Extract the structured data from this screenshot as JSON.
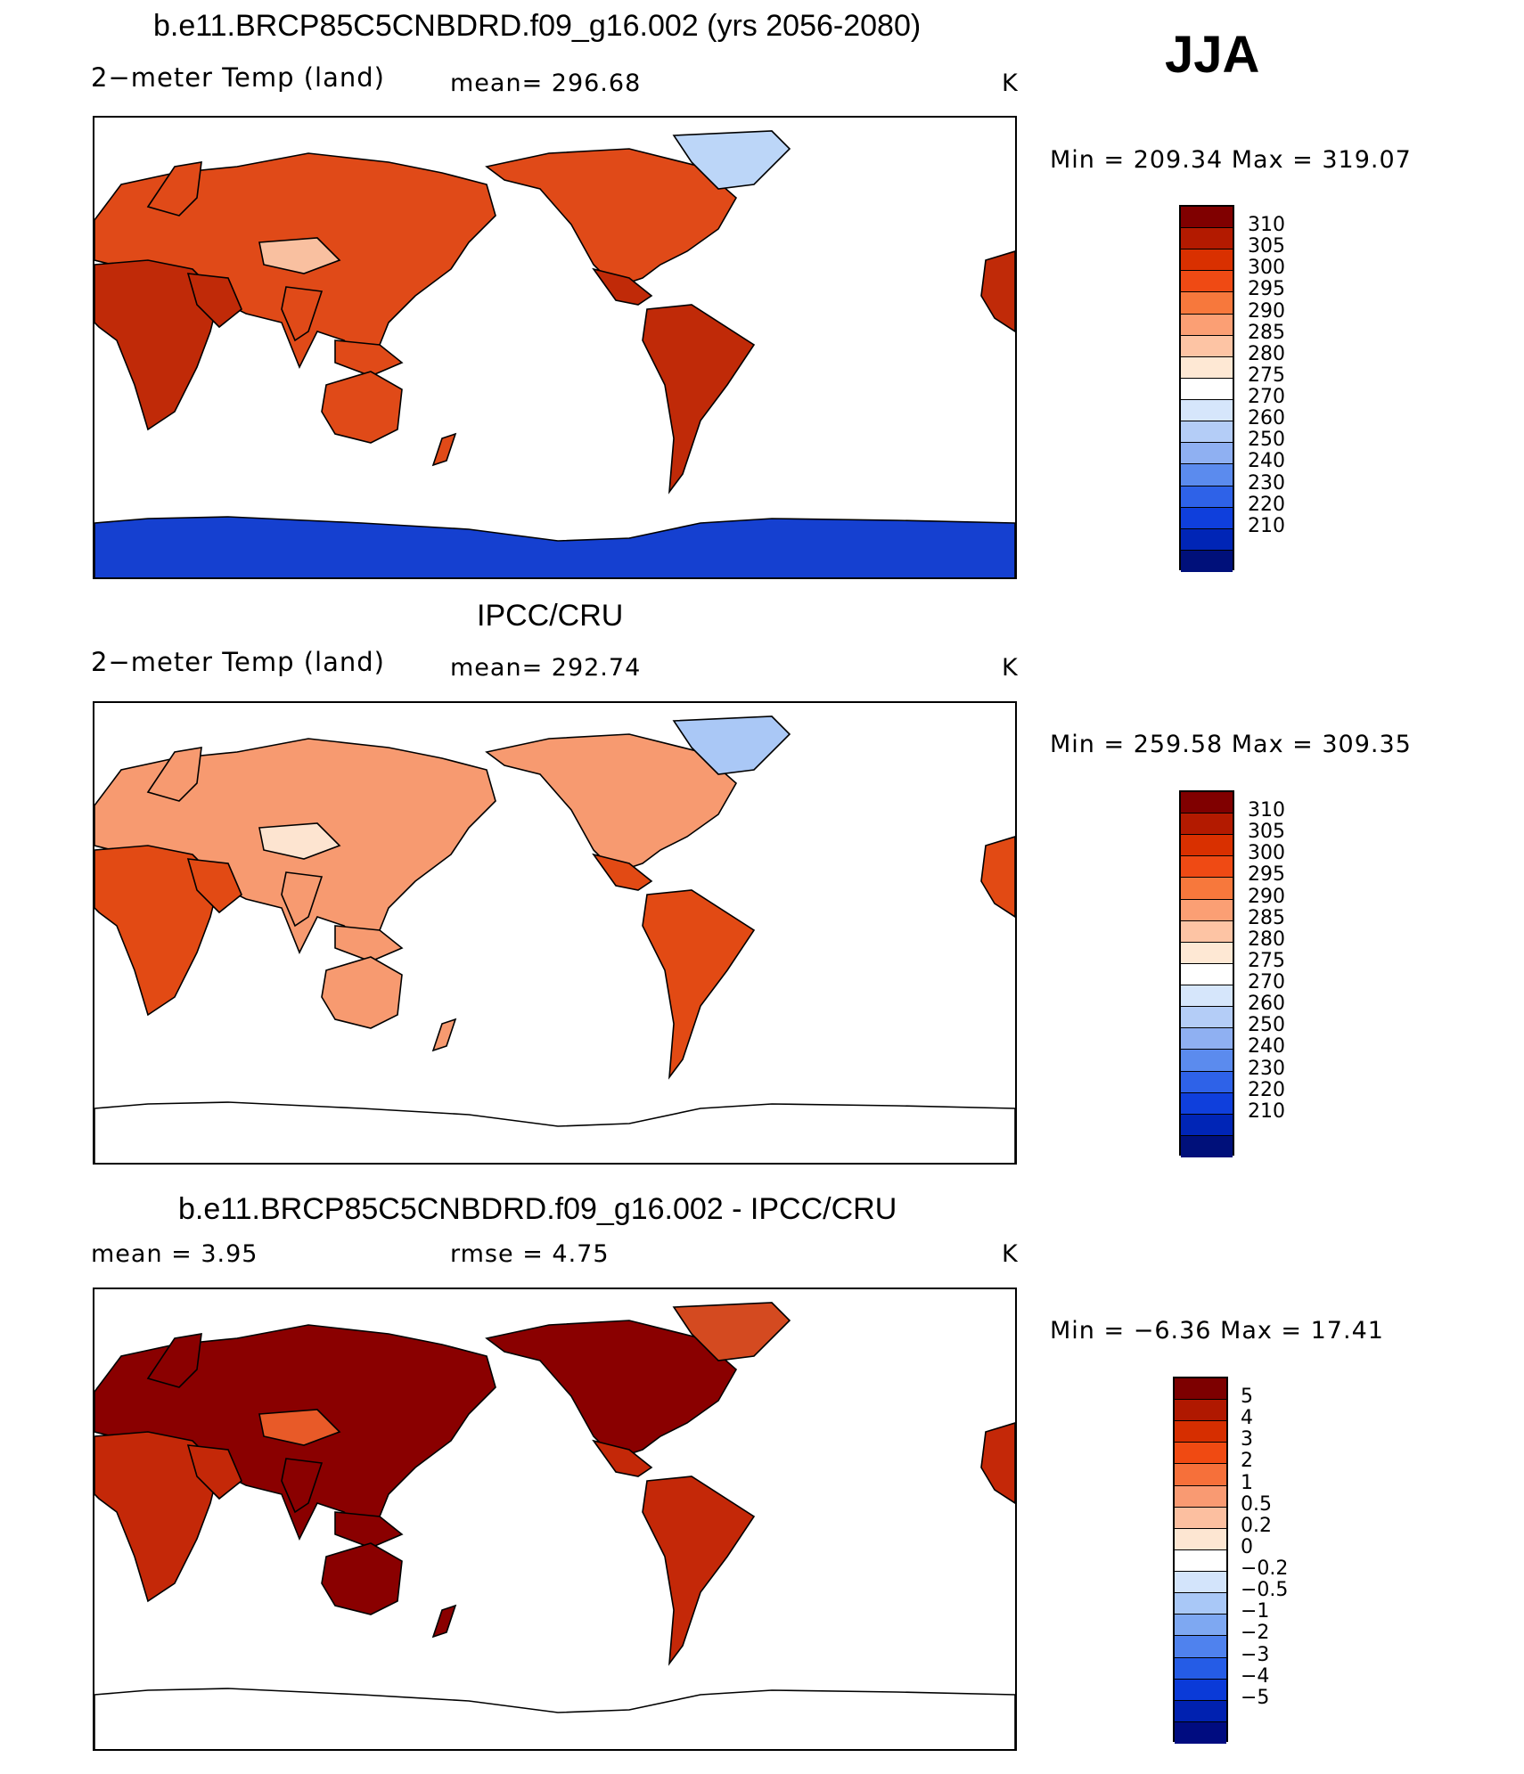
{
  "season": "JJA",
  "panels": [
    {
      "title": "b.e11.BRCP85C5CNBDRD.f09_g16.002 (yrs 2056-2080)",
      "left_label": "2−meter Temp (land)",
      "center_label": "mean=  296.68",
      "unit": "K",
      "minmax": "Min  =  209.34  Max  =  319.07"
    },
    {
      "title": "IPCC/CRU",
      "left_label": "2−meter Temp (land)",
      "center_label": "mean=  292.74",
      "unit": "K",
      "minmax": "Min  =  259.58  Max  =  309.35"
    },
    {
      "title": "b.e11.BRCP85C5CNBDRD.f09_g16.002 - IPCC/CRU",
      "left_label": "mean  =      3.95",
      "center_label": "rmse  =      4.75",
      "unit": "K",
      "minmax": "Min  =     −6.36  Max  =     17.41"
    }
  ],
  "chart_data": [
    {
      "type": "heatmap",
      "title": "b.e11.BRCP85C5CNBDRD.f09_g16.002 (yrs 2056-2080)",
      "variable": "2−meter Temp (land)",
      "units": "K",
      "mean": 296.68,
      "min": 209.34,
      "max": 319.07,
      "colorbar_levels": [
        "310",
        "305",
        "300",
        "295",
        "290",
        "285",
        "280",
        "275",
        "270",
        "260",
        "250",
        "240",
        "230",
        "220",
        "210"
      ],
      "colorbar_colors": [
        "#800000",
        "#b31a00",
        "#d93000",
        "#ef4a14",
        "#f7783c",
        "#fb9f74",
        "#fdc4a4",
        "#fee8d4",
        "#ffffff",
        "#d6e6fb",
        "#b4cdf7",
        "#8fb0f2",
        "#5b8bee",
        "#2e62e8",
        "#0f3fdc",
        "#0025b6",
        "#00107a"
      ],
      "regions": {
        "northern_land": "#e04a18",
        "tropics_dry": "#c02a08",
        "tibet": "#f9c0a0",
        "greenland": "#bcd6f8",
        "antarctica": "#1540d0"
      }
    },
    {
      "type": "heatmap",
      "title": "IPCC/CRU",
      "variable": "2−meter Temp (land)",
      "units": "K",
      "mean": 292.74,
      "min": 259.58,
      "max": 309.35,
      "colorbar_levels": [
        "310",
        "305",
        "300",
        "295",
        "290",
        "285",
        "280",
        "275",
        "270",
        "260",
        "250",
        "240",
        "230",
        "220",
        "210"
      ],
      "colorbar_colors": [
        "#800000",
        "#b31a00",
        "#d93000",
        "#ef4a14",
        "#f7783c",
        "#fb9f74",
        "#fdc4a4",
        "#fee8d4",
        "#ffffff",
        "#d6e6fb",
        "#b4cdf7",
        "#8fb0f2",
        "#5b8bee",
        "#2e62e8",
        "#0f3fdc",
        "#0025b6",
        "#00107a"
      ],
      "regions": {
        "northern_land": "#f79a70",
        "tropics_dry": "#e24a14",
        "tibet": "#fde4d0",
        "greenland": "#aac8f6",
        "antarctica": "#ffffff"
      }
    },
    {
      "type": "heatmap",
      "title": "b.e11.BRCP85C5CNBDRD.f09_g16.002 - IPCC/CRU",
      "units": "K",
      "mean": 3.95,
      "rmse": 4.75,
      "min": -6.36,
      "max": 17.41,
      "colorbar_levels": [
        "5",
        "4",
        "3",
        "2",
        "1",
        "0.5",
        "0.2",
        "0",
        "−0.2",
        "−0.5",
        "−1",
        "−2",
        "−3",
        "−4",
        "−5"
      ],
      "colorbar_colors": [
        "#7d0000",
        "#b01800",
        "#d62e00",
        "#f04a12",
        "#f6703a",
        "#f99a72",
        "#fcbfa0",
        "#fde6d2",
        "#ffffff",
        "#d3e4fb",
        "#a9c8f7",
        "#7ea8f2",
        "#4f82ee",
        "#255ce6",
        "#0a3ad8",
        "#0021b0",
        "#000c80"
      ],
      "regions": {
        "northern_land": "#8a0000",
        "tropics_dry": "#c42808",
        "tibet": "#e85a28",
        "greenland": "#d44a20",
        "antarctica": "#ffffff"
      }
    }
  ]
}
